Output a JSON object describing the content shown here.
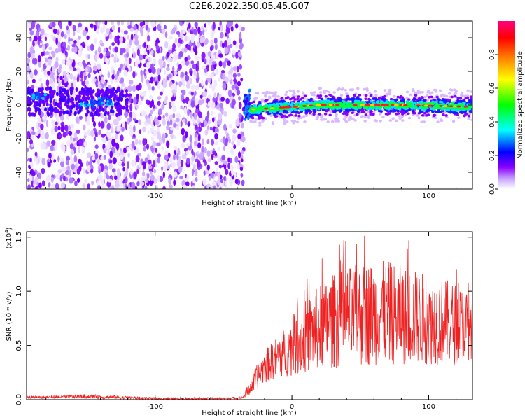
{
  "title": "C2E6.2022.350.05.45.G07",
  "chart_data": [
    {
      "type": "heatmap",
      "xlabel": "Height of straight line (km)",
      "ylabel": "Frequency (Hz)",
      "xlim": [
        -194,
        132
      ],
      "ylim": [
        -50,
        50
      ],
      "xticks": [
        "-100",
        "0",
        "100"
      ],
      "yticks": [
        "-40",
        "-20",
        "0",
        "20",
        "40"
      ],
      "colorbar": {
        "label": "Normalized spectral amplitude",
        "range": [
          0,
          1
        ],
        "ticks": [
          "0.0",
          "0.2",
          "0.4",
          "0.6",
          "0.8"
        ],
        "colors": [
          "#ffffff",
          "#8a00ff",
          "#0000ff",
          "#00ffff",
          "#00ff00",
          "#ffff00",
          "#ff8000",
          "#ff0000",
          "#ff0080"
        ]
      },
      "regions": {
        "noise_x_range": [
          -194,
          -35
        ],
        "empty_x_range": [
          -35,
          132
        ],
        "signal_x_range": [
          -35,
          132
        ],
        "signal_freq_hz": [
          -3,
          0,
          0,
          -1
        ]
      }
    },
    {
      "type": "line",
      "xlabel": "Height of straight line (km)",
      "ylabel": "SNR (10 * v/v)",
      "yscale_label": "(x10",
      "yscale_exponent": "4",
      "xlim": [
        -194,
        132
      ],
      "ylim": [
        0,
        1.55
      ],
      "xticks": [
        "-100",
        "0",
        "100"
      ],
      "yticks": [
        "0.0",
        "0.5",
        "1.0",
        "1.5"
      ],
      "color": "#ee2222",
      "series": [
        {
          "x": [
            -194,
            -150,
            -100,
            -50,
            -36,
            -30,
            -25,
            -20,
            -10,
            0,
            10,
            20,
            30,
            40,
            50,
            60,
            70,
            80,
            90,
            100,
            110,
            120,
            132
          ],
          "mean": [
            0.02,
            0.03,
            0.01,
            0.01,
            0.02,
            0.12,
            0.22,
            0.3,
            0.4,
            0.48,
            0.58,
            0.66,
            0.72,
            0.76,
            0.78,
            0.8,
            0.8,
            0.78,
            0.76,
            0.74,
            0.72,
            0.7,
            0.68
          ],
          "amp": [
            0.01,
            0.02,
            0.01,
            0.01,
            0.01,
            0.08,
            0.12,
            0.15,
            0.2,
            0.26,
            0.34,
            0.4,
            0.44,
            0.46,
            0.48,
            0.48,
            0.48,
            0.46,
            0.44,
            0.42,
            0.4,
            0.38,
            0.3
          ]
        }
      ]
    }
  ]
}
